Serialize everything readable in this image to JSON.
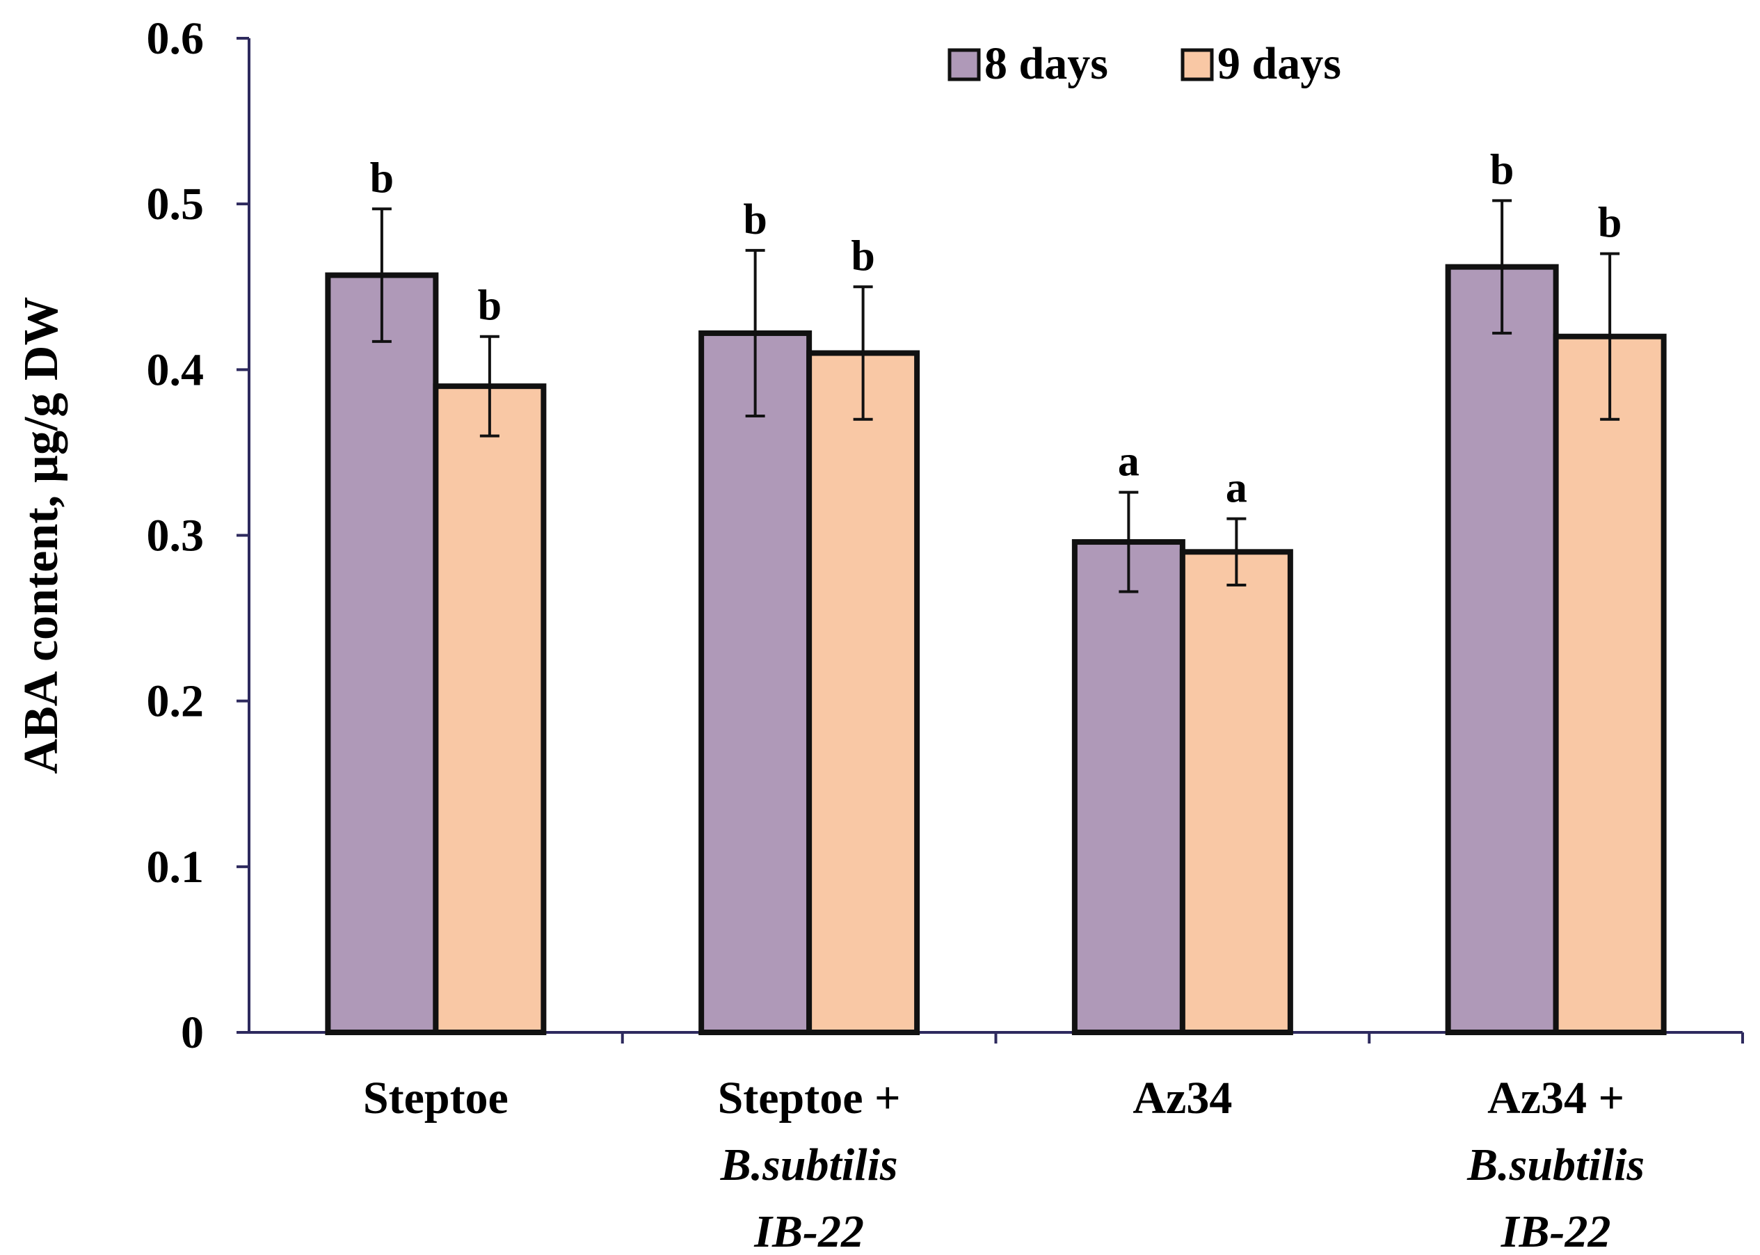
{
  "chart_data": {
    "type": "bar",
    "title": "",
    "xlabel": "",
    "ylabel": "ABA content, µg/g DW",
    "ylim": [
      0,
      0.6
    ],
    "yticks": [
      "0",
      "0.1",
      "0.2",
      "0.3",
      "0.4",
      "0.5",
      "0.6"
    ],
    "ytick_values": [
      0,
      0.1,
      0.2,
      0.3,
      0.4,
      0.5,
      0.6
    ],
    "categories": [
      {
        "lines": [
          {
            "text": "Steptoe",
            "italic": false
          }
        ]
      },
      {
        "lines": [
          {
            "text": "Steptoe +",
            "italic": false
          },
          {
            "text": "B.subtilis",
            "italic": true
          },
          {
            "text": "IB-22",
            "italic": true
          }
        ]
      },
      {
        "lines": [
          {
            "text": "Az34",
            "italic": false
          }
        ]
      },
      {
        "lines": [
          {
            "text": "Az34 +",
            "italic": false
          },
          {
            "text": "B.subtilis",
            "italic": true
          },
          {
            "text": "IB-22",
            "italic": true
          }
        ]
      }
    ],
    "series": [
      {
        "name": "8 days",
        "color": "#AF99B8",
        "values": [
          0.457,
          0.422,
          0.296,
          0.462
        ],
        "errors": [
          0.04,
          0.05,
          0.03,
          0.04
        ],
        "labels": [
          "b",
          "b",
          "a",
          "b"
        ]
      },
      {
        "name": "9 days",
        "color": "#F9C8A5",
        "values": [
          0.39,
          0.41,
          0.29,
          0.42
        ],
        "errors": [
          0.03,
          0.04,
          0.02,
          0.05
        ],
        "labels": [
          "b",
          "b",
          "a",
          "b"
        ]
      }
    ],
    "legend": {
      "position": "top-right"
    },
    "axis_color": "#2E2A5E",
    "bar_edge_color": "#111111",
    "grid": false
  }
}
